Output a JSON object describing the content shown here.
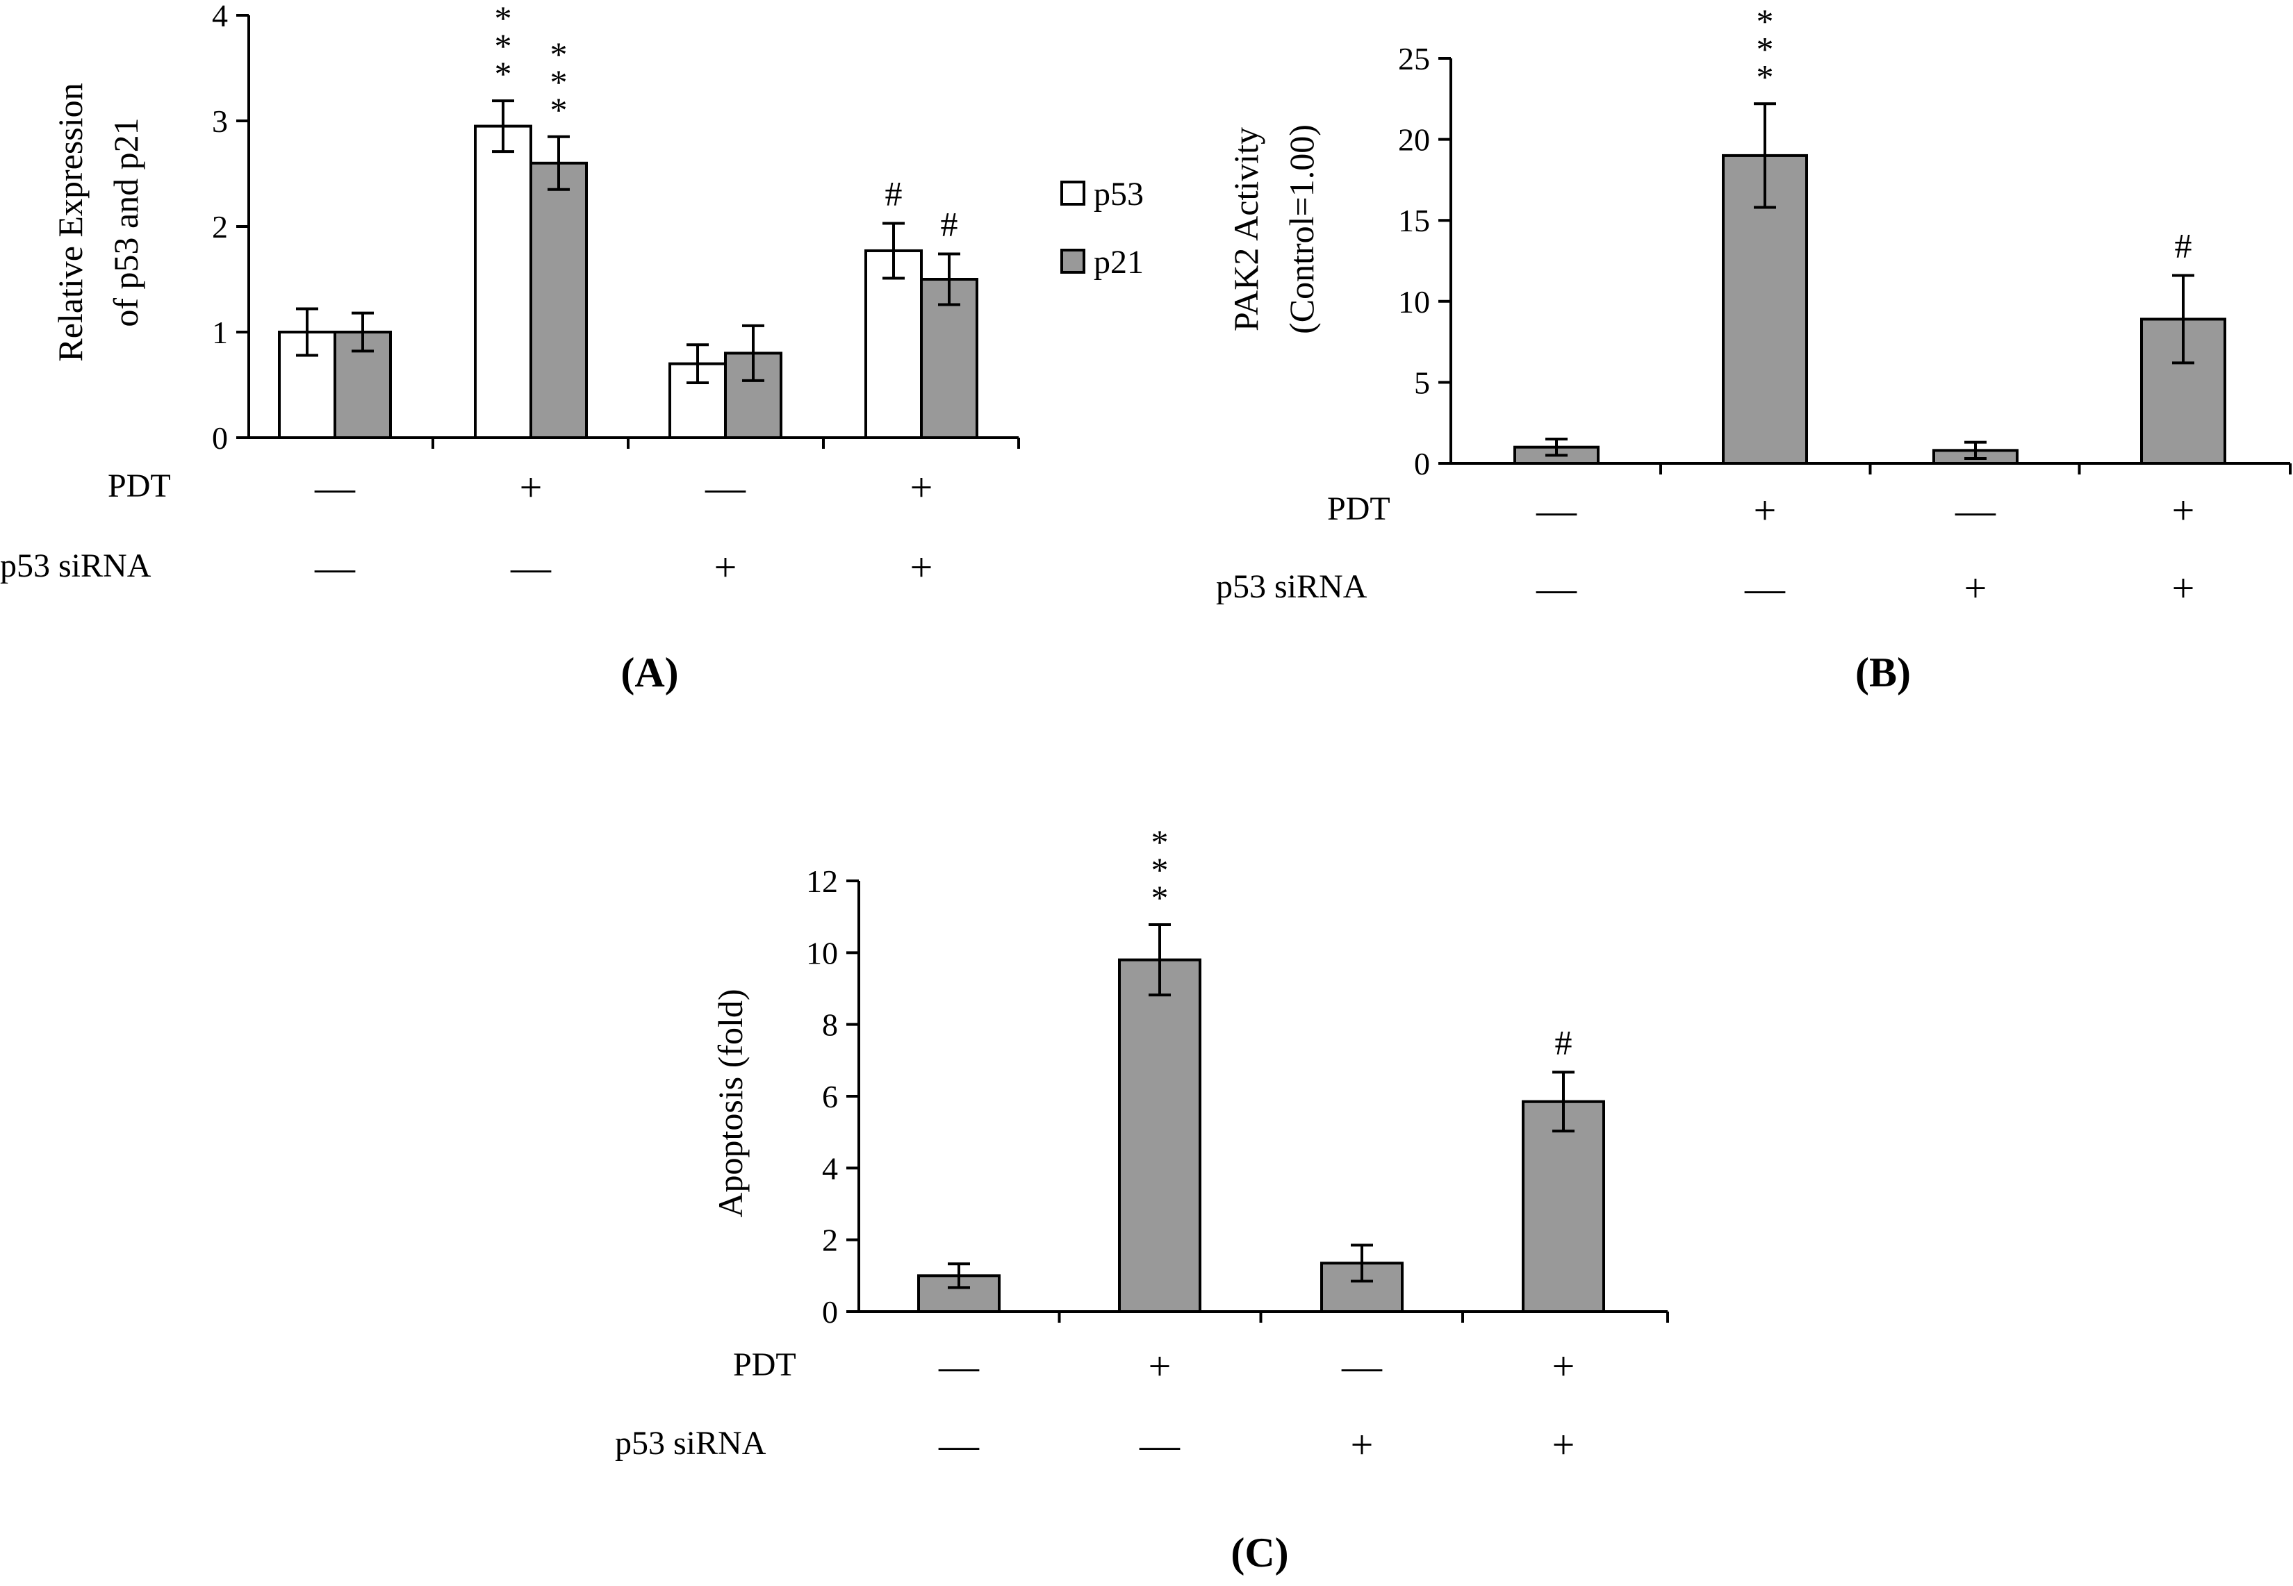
{
  "colors": {
    "p53": "#ffffff",
    "p21": "#999999",
    "single": "#999999",
    "stroke": "#000000"
  },
  "row_labels": {
    "pdt": "PDT",
    "sirna": "p53 siRNA"
  },
  "sign_text": {
    "plus": "+",
    "minus": "—"
  },
  "conditions": {
    "pdt": [
      "minus",
      "plus",
      "minus",
      "plus"
    ],
    "sirna": [
      "minus",
      "minus",
      "plus",
      "plus"
    ]
  },
  "legend": [
    {
      "label": "p53"
    },
    {
      "label": "p21"
    }
  ],
  "chart_data": [
    {
      "id": "A",
      "panel_label": "(A)",
      "type": "bar",
      "ylabel": "Relative Expression",
      "ylabel_line2": "of  p53 and p21",
      "ylim": [
        0,
        4
      ],
      "yticks": [
        0,
        1,
        2,
        3,
        4
      ],
      "series": [
        {
          "name": "p53",
          "values": [
            1.0,
            2.95,
            0.7,
            1.77
          ],
          "errors": [
            0.22,
            0.24,
            0.18,
            0.26
          ],
          "annotations": [
            "",
            "***",
            "",
            "#"
          ]
        },
        {
          "name": "p21",
          "values": [
            1.0,
            2.6,
            0.8,
            1.5
          ],
          "errors": [
            0.18,
            0.25,
            0.26,
            0.24
          ],
          "annotations": [
            "",
            "***",
            "",
            "#"
          ]
        }
      ]
    },
    {
      "id": "B",
      "panel_label": "(B)",
      "type": "bar",
      "ylabel": "PAK2 Activity",
      "ylabel_line2": "(Control=1.00)",
      "ylim": [
        0,
        25
      ],
      "yticks": [
        0,
        5,
        10,
        15,
        20,
        25
      ],
      "series": [
        {
          "name": "PAK2 Activity",
          "values": [
            1.0,
            19.0,
            0.8,
            8.9
          ],
          "errors": [
            0.5,
            3.2,
            0.5,
            2.7
          ],
          "annotations": [
            "",
            "***",
            "",
            "#"
          ]
        }
      ]
    },
    {
      "id": "C",
      "panel_label": "(C)",
      "type": "bar",
      "ylabel": "Apoptosis (fold)",
      "ylabel_line2": "",
      "ylim": [
        0,
        12
      ],
      "yticks": [
        0,
        2,
        4,
        6,
        8,
        10,
        12
      ],
      "series": [
        {
          "name": "Apoptosis",
          "values": [
            1.0,
            9.8,
            1.35,
            5.85
          ],
          "errors": [
            0.33,
            0.98,
            0.5,
            0.82
          ],
          "annotations": [
            "",
            "***",
            "",
            "#"
          ]
        }
      ]
    }
  ]
}
